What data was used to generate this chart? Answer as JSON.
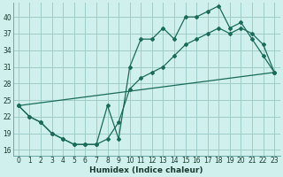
{
  "xlabel": "Humidex (Indice chaleur)",
  "background_color": "#cff0ec",
  "grid_color": "#9fccc8",
  "line_color": "#1a6b5a",
  "spine_color": "#6aaba5",
  "xlim": [
    -0.5,
    23.5
  ],
  "ylim": [
    15,
    42.5
  ],
  "xticks": [
    0,
    1,
    2,
    3,
    4,
    5,
    6,
    7,
    8,
    9,
    10,
    11,
    12,
    13,
    14,
    15,
    16,
    17,
    18,
    19,
    20,
    21,
    22,
    23
  ],
  "yticks": [
    16,
    19,
    22,
    25,
    28,
    31,
    34,
    37,
    40
  ],
  "series1_x": [
    0,
    1,
    2,
    3,
    4,
    5,
    6,
    7,
    8,
    9,
    10,
    11,
    12,
    13,
    14,
    15,
    16,
    17,
    18,
    19,
    20,
    21,
    22,
    23
  ],
  "series1_y": [
    24,
    22,
    21,
    19,
    18,
    17,
    17,
    17,
    24,
    18,
    31,
    36,
    36,
    38,
    36,
    40,
    40,
    41,
    42,
    38,
    39,
    36,
    33,
    30
  ],
  "series2_x": [
    0,
    1,
    2,
    3,
    4,
    5,
    6,
    7,
    8,
    9,
    10,
    11,
    12,
    13,
    14,
    15,
    16,
    17,
    18,
    19,
    20,
    21,
    22,
    23
  ],
  "series2_y": [
    24,
    22,
    21,
    19,
    18,
    17,
    17,
    17,
    18,
    21,
    27,
    29,
    30,
    31,
    33,
    35,
    36,
    37,
    38,
    37,
    38,
    37,
    35,
    30
  ],
  "series3_x": [
    0,
    23
  ],
  "series3_y": [
    24,
    30
  ],
  "tick_fontsize": 5.5,
  "xlabel_fontsize": 6.5
}
